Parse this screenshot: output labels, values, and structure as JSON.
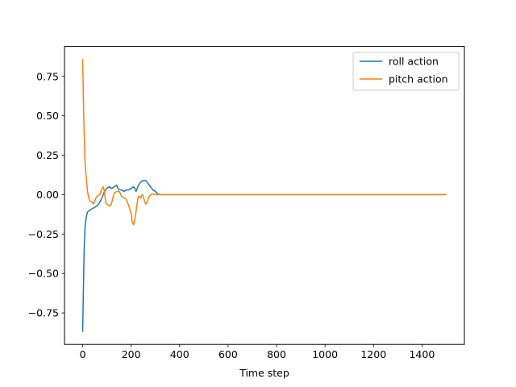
{
  "chart_data": {
    "type": "line",
    "title": "",
    "xlabel": "Time step",
    "ylabel": "",
    "xlim": [
      -75,
      1575
    ],
    "ylim": [
      -0.95,
      0.94
    ],
    "xticks": [
      0,
      200,
      400,
      600,
      800,
      1000,
      1200,
      1400
    ],
    "xtick_labels": [
      "0",
      "200",
      "400",
      "600",
      "800",
      "1000",
      "1200",
      "1400"
    ],
    "yticks": [
      -0.75,
      -0.5,
      -0.25,
      0.0,
      0.25,
      0.5,
      0.75
    ],
    "ytick_labels": [
      "−0.75",
      "−0.50",
      "−0.25",
      "0.00",
      "0.25",
      "0.50",
      "0.75"
    ],
    "grid": false,
    "legend_position": "top-right",
    "series": [
      {
        "name": "roll action",
        "color": "#1f77b4",
        "x": [
          0,
          3,
          6,
          10,
          15,
          20,
          28,
          38,
          50,
          60,
          70,
          80,
          90,
          100,
          110,
          120,
          130,
          140,
          145,
          150,
          160,
          170,
          180,
          190,
          200,
          210,
          215,
          220,
          230,
          240,
          250,
          260,
          270,
          280,
          290,
          300,
          310,
          320,
          340,
          400,
          600,
          800,
          1000,
          1200,
          1400,
          1500
        ],
        "y": [
          -0.87,
          -0.6,
          -0.35,
          -0.2,
          -0.14,
          -0.11,
          -0.1,
          -0.09,
          -0.08,
          -0.07,
          -0.05,
          -0.02,
          0.02,
          0.04,
          0.05,
          0.04,
          0.05,
          0.06,
          0.04,
          0.03,
          0.03,
          0.02,
          0.03,
          0.03,
          0.04,
          0.05,
          0.04,
          0.02,
          0.06,
          0.08,
          0.09,
          0.09,
          0.07,
          0.05,
          0.03,
          0.02,
          0.005,
          0.0,
          0.0,
          0.0,
          0.0,
          0.0,
          0.0,
          0.0,
          0.0,
          0.0
        ]
      },
      {
        "name": "pitch action",
        "color": "#ff7f0e",
        "x": [
          0,
          3,
          6,
          10,
          15,
          20,
          25,
          30,
          40,
          45,
          50,
          55,
          60,
          70,
          75,
          80,
          85,
          90,
          95,
          100,
          110,
          115,
          120,
          125,
          130,
          140,
          150,
          155,
          160,
          170,
          180,
          190,
          200,
          205,
          210,
          215,
          220,
          225,
          230,
          240,
          245,
          250,
          255,
          260,
          265,
          270,
          275,
          280,
          290,
          300,
          310,
          330,
          400,
          600,
          800,
          1000,
          1200,
          1400,
          1500
        ],
        "y": [
          0.86,
          0.6,
          0.4,
          0.2,
          0.1,
          0.02,
          -0.02,
          -0.04,
          -0.05,
          -0.06,
          -0.04,
          -0.02,
          -0.01,
          0.0,
          0.02,
          0.04,
          0.05,
          0.02,
          -0.05,
          -0.06,
          -0.07,
          -0.07,
          -0.05,
          -0.02,
          0.01,
          0.02,
          0.02,
          0.01,
          -0.01,
          -0.02,
          -0.03,
          -0.07,
          -0.12,
          -0.18,
          -0.19,
          -0.16,
          -0.11,
          -0.05,
          -0.01,
          -0.02,
          0.0,
          -0.01,
          -0.04,
          -0.06,
          -0.05,
          -0.03,
          -0.01,
          0.0,
          0.005,
          0.0,
          0.0,
          0.0,
          0.0,
          0.0,
          0.0,
          0.0,
          0.0,
          0.0,
          0.0
        ]
      }
    ]
  }
}
